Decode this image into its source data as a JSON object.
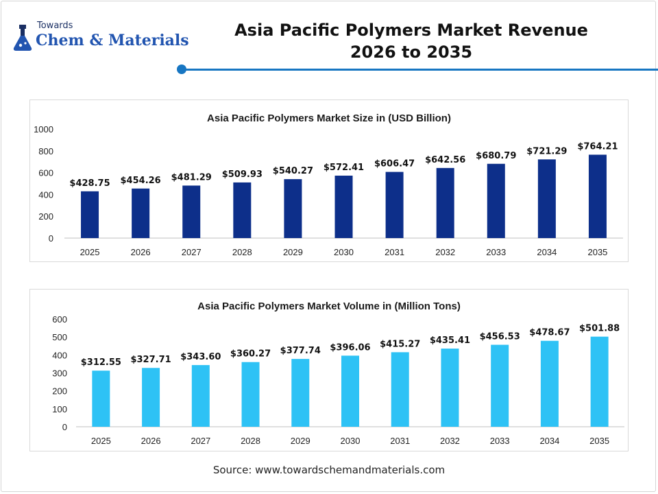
{
  "logo": {
    "line1": "Towards",
    "line2": "Chem & Materials"
  },
  "header": {
    "title_line1": "Asia Pacific Polymers Market Revenue",
    "title_line2": "2026 to 2035"
  },
  "source": "Source: www.towardschemandmaterials.com",
  "colors": {
    "accent": "#1776c2",
    "revenue_bar": "#0d2f8a",
    "volume_bar": "#2ec2f5"
  },
  "chart_data": [
    {
      "type": "bar",
      "title": "Asia Pacific Polymers Market Size in (USD Billion)",
      "categories": [
        "2025",
        "2026",
        "2027",
        "2028",
        "2029",
        "2030",
        "2031",
        "2032",
        "2033",
        "2034",
        "2035"
      ],
      "values": [
        428.75,
        454.26,
        481.29,
        509.93,
        540.27,
        572.41,
        606.47,
        642.56,
        680.79,
        721.29,
        764.21
      ],
      "data_labels": [
        "$428.75",
        "$454.26",
        "$481.29",
        "$509.93",
        "$540.27",
        "$572.41",
        "$606.47",
        "$642.56",
        "$680.79",
        "$721.29",
        "$764.21"
      ],
      "ylim": [
        0,
        1000
      ],
      "yticks": [
        "0",
        "200",
        "400",
        "600",
        "800",
        "1000"
      ],
      "grid": false
    },
    {
      "type": "bar",
      "title": "Asia Pacific Polymers Market Volume in (Million Tons)",
      "categories": [
        "2025",
        "2026",
        "2027",
        "2028",
        "2029",
        "2030",
        "2031",
        "2032",
        "2033",
        "2034",
        "2035"
      ],
      "values": [
        312.55,
        327.71,
        343.6,
        360.27,
        377.74,
        396.06,
        415.27,
        435.41,
        456.53,
        478.67,
        501.88
      ],
      "data_labels": [
        "$312.55",
        "$327.71",
        "$343.60",
        "$360.27",
        "$377.74",
        "$396.06",
        "$415.27",
        "$435.41",
        "$456.53",
        "$478.67",
        "$501.88"
      ],
      "ylim": [
        0,
        600
      ],
      "yticks": [
        "0",
        "100",
        "200",
        "300",
        "400",
        "500",
        "600"
      ],
      "grid": false
    }
  ]
}
